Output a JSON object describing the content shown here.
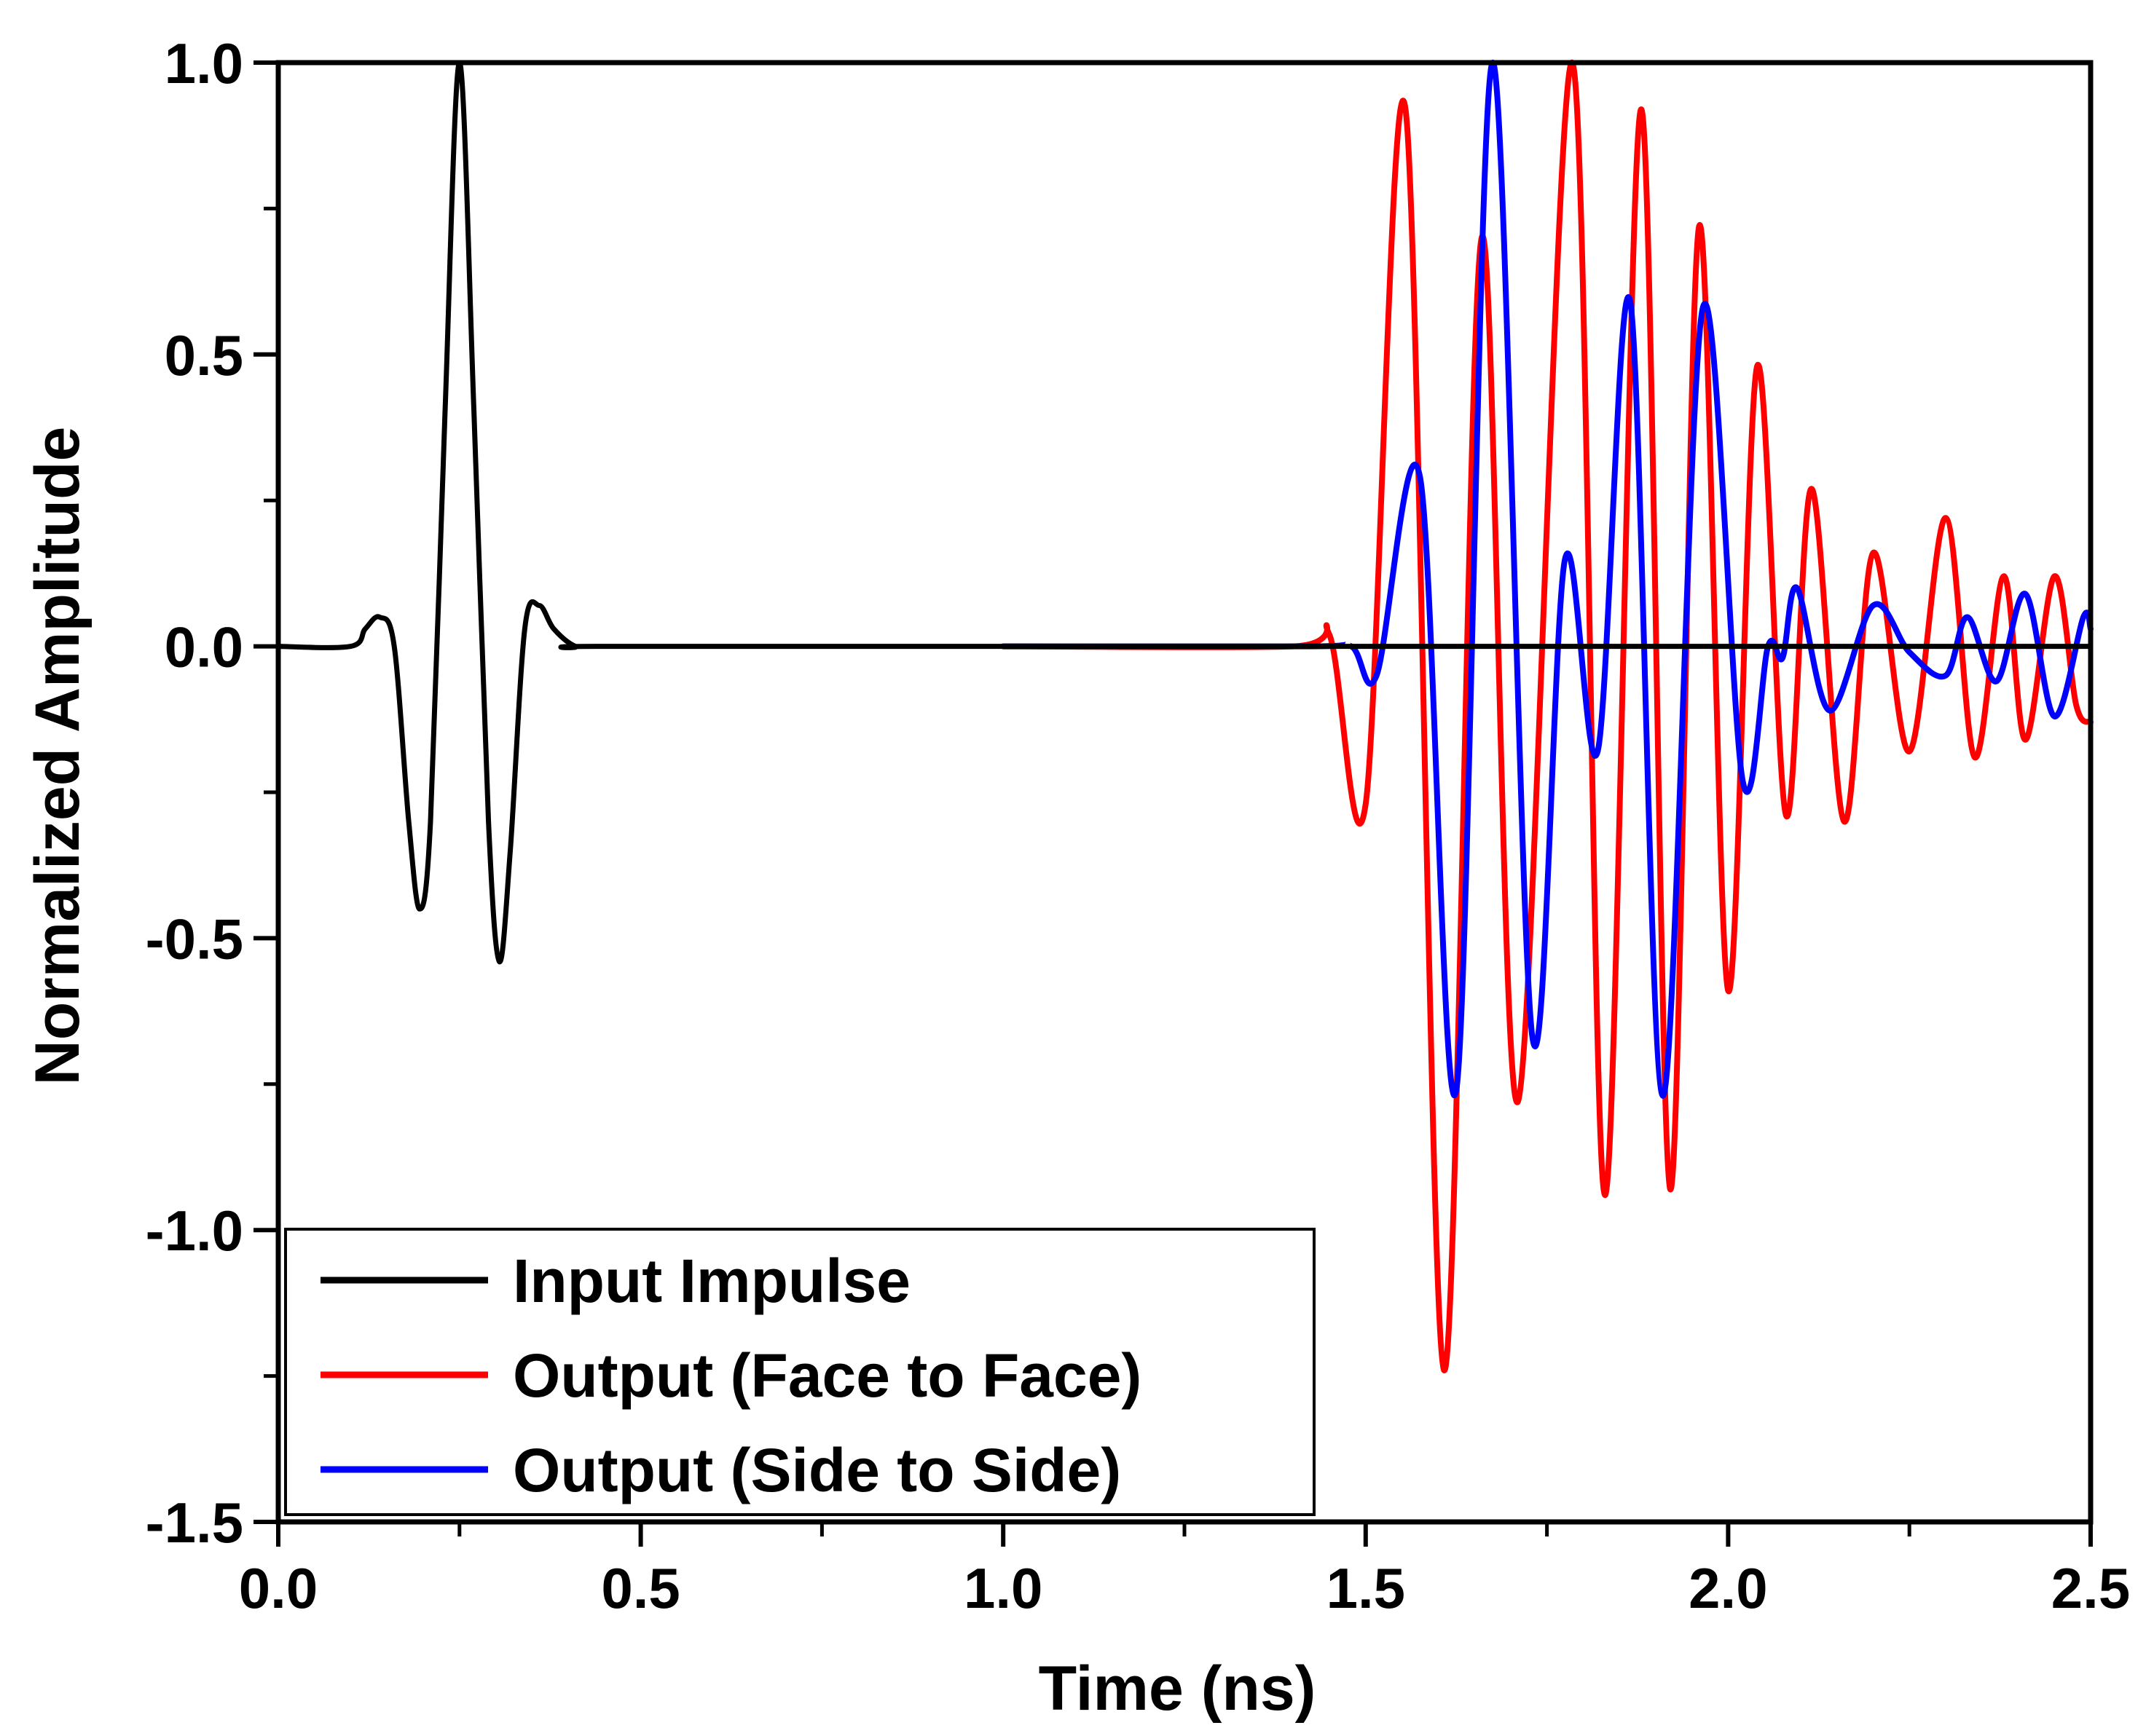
{
  "chart_data": {
    "type": "line",
    "xlabel": "Time (ns)",
    "ylabel": "Normalized Amplitude",
    "xlim": [
      0.0,
      2.5
    ],
    "ylim": [
      -1.5,
      1.0
    ],
    "x_ticks": [
      "0.0",
      "0.5",
      "1.0",
      "1.5",
      "2.0",
      "2.5"
    ],
    "y_ticks": [
      "-1.5",
      "-1.0",
      "-0.5",
      "0.0",
      "0.5",
      "1.0"
    ],
    "x_tick_values": [
      0.0,
      0.5,
      1.0,
      1.5,
      2.0,
      2.5
    ],
    "y_tick_values": [
      -1.5,
      -1.0,
      -0.5,
      0.0,
      0.5,
      1.0
    ],
    "x_minor_step": 0.25,
    "y_minor_step": 0.25,
    "grid": false,
    "legend_position": "bottom-left",
    "series": [
      {
        "name": "Input Impulse",
        "color": "#000000",
        "x": [
          0.0,
          0.1,
          0.12,
          0.14,
          0.16,
          0.18,
          0.195,
          0.21,
          0.23,
          0.25,
          0.27,
          0.29,
          0.305,
          0.32,
          0.34,
          0.36,
          0.38,
          0.41,
          0.44,
          1.0,
          2.5
        ],
        "y": [
          0.0,
          0.0,
          0.03,
          0.05,
          0.0,
          -0.3,
          -0.45,
          -0.3,
          0.4,
          1.0,
          0.4,
          -0.3,
          -0.54,
          -0.35,
          0.03,
          0.07,
          0.03,
          0.0,
          0.0,
          0.0,
          0.0
        ]
      },
      {
        "name": "Output (Face to Face)",
        "color": "#ff0000",
        "x": [
          1.0,
          1.4,
          1.45,
          1.5,
          1.555,
          1.608,
          1.66,
          1.71,
          1.785,
          1.83,
          1.88,
          1.92,
          1.96,
          2.0,
          2.04,
          2.08,
          2.115,
          2.16,
          2.2,
          2.25,
          2.3,
          2.34,
          2.38,
          2.41,
          2.45,
          2.48,
          2.5
        ],
        "y": [
          0.0,
          0.0,
          0.02,
          -0.27,
          0.92,
          -1.24,
          0.7,
          -0.78,
          1.0,
          -0.94,
          0.92,
          -0.93,
          0.72,
          -0.59,
          0.48,
          -0.29,
          0.27,
          -0.3,
          0.16,
          -0.18,
          0.22,
          -0.19,
          0.12,
          -0.16,
          0.12,
          -0.1,
          -0.13
        ]
      },
      {
        "name": "Output (Side to Side)",
        "color": "#0000ff",
        "x": [
          1.0,
          1.42,
          1.48,
          1.515,
          1.575,
          1.625,
          1.675,
          1.73,
          1.775,
          1.82,
          1.865,
          1.91,
          1.965,
          2.02,
          2.055,
          2.075,
          2.095,
          2.14,
          2.2,
          2.25,
          2.3,
          2.33,
          2.37,
          2.41,
          2.45,
          2.49,
          2.5
        ],
        "y": [
          0.0,
          0.0,
          0.0,
          -0.05,
          0.29,
          -0.76,
          1.0,
          -0.67,
          0.15,
          -0.18,
          0.59,
          -0.77,
          0.58,
          -0.23,
          0.0,
          -0.02,
          0.1,
          -0.11,
          0.07,
          -0.01,
          -0.05,
          0.05,
          -0.06,
          0.09,
          -0.12,
          0.05,
          0.03
        ]
      }
    ]
  }
}
